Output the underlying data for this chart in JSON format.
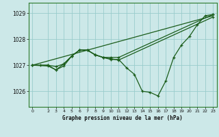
{
  "xlabel": "Graphe pression niveau de la mer (hPa)",
  "background_color": "#cce8e8",
  "grid_color": "#99cccc",
  "line_color": "#1a5c1a",
  "ylim": [
    1025.4,
    1029.4
  ],
  "xlim": [
    -0.5,
    23.5
  ],
  "yticks": [
    1026,
    1027,
    1028,
    1029
  ],
  "xticks": [
    0,
    2,
    3,
    4,
    5,
    6,
    7,
    8,
    9,
    10,
    11,
    12,
    13,
    14,
    15,
    16,
    17,
    18,
    19,
    20,
    21,
    22,
    23
  ],
  "line_main": {
    "x": [
      0,
      1,
      2,
      3,
      4,
      5,
      6,
      7,
      8,
      9,
      10,
      11,
      12,
      13,
      14,
      15,
      16,
      17,
      18,
      19,
      20,
      21,
      22,
      23
    ],
    "y": [
      1027.0,
      1027.0,
      1027.0,
      1026.82,
      1027.05,
      1027.35,
      1027.58,
      1027.58,
      1027.4,
      1027.3,
      1027.22,
      1027.22,
      1026.9,
      1026.65,
      1026.0,
      1025.96,
      1025.82,
      1026.4,
      1027.3,
      1027.78,
      1028.1,
      1028.55,
      1028.9,
      1028.95
    ]
  },
  "line_upper": {
    "x": [
      0,
      23
    ],
    "y": [
      1027.0,
      1028.9
    ]
  },
  "line_mid1": {
    "x": [
      0,
      2,
      3,
      4,
      5,
      6,
      7,
      8,
      9,
      10,
      11,
      23
    ],
    "y": [
      1027.0,
      1027.0,
      1026.95,
      1027.05,
      1027.35,
      1027.58,
      1027.58,
      1027.4,
      1027.3,
      1027.3,
      1027.3,
      1028.95
    ]
  },
  "line_mid2": {
    "x": [
      0,
      2,
      3,
      4,
      5,
      6,
      7,
      8,
      9,
      10,
      11,
      23
    ],
    "y": [
      1027.0,
      1026.97,
      1026.82,
      1026.97,
      1027.35,
      1027.58,
      1027.58,
      1027.4,
      1027.3,
      1027.25,
      1027.2,
      1028.85
    ]
  }
}
